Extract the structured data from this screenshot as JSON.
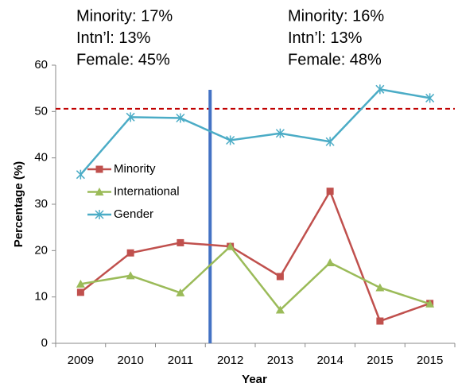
{
  "chart_data": {
    "type": "line",
    "x_label": "Year",
    "y_label": "Percentage (%)",
    "categories": [
      "2009",
      "2010",
      "2011",
      "2012",
      "2013",
      "2014",
      "2015",
      "2015"
    ],
    "series": [
      {
        "name": "Minority",
        "color": "#c0504d",
        "marker": "square",
        "values": [
          11.0,
          19.5,
          21.7,
          20.9,
          14.4,
          32.8,
          4.8,
          8.6
        ]
      },
      {
        "name": "International",
        "color": "#9bbb59",
        "marker": "triangle",
        "values": [
          12.8,
          14.6,
          10.9,
          20.9,
          7.2,
          17.4,
          12.0,
          8.5
        ]
      },
      {
        "name": "Gender",
        "color": "#4bacc6",
        "marker": "star",
        "values": [
          36.4,
          48.8,
          48.6,
          43.8,
          45.3,
          43.5,
          54.8,
          52.9
        ]
      }
    ],
    "reference_line": {
      "value": 50.6,
      "color": "#c00000"
    },
    "ylim": [
      0,
      60
    ],
    "yticks": [
      0,
      10,
      20,
      30,
      40,
      50,
      60
    ],
    "annotations": [
      [
        "Minority: 17%",
        "Intn’l: 13%",
        "Female: 45%"
      ],
      [
        "Minority: 16%",
        "Intn’l: 13%",
        "Female: 48%"
      ]
    ]
  }
}
